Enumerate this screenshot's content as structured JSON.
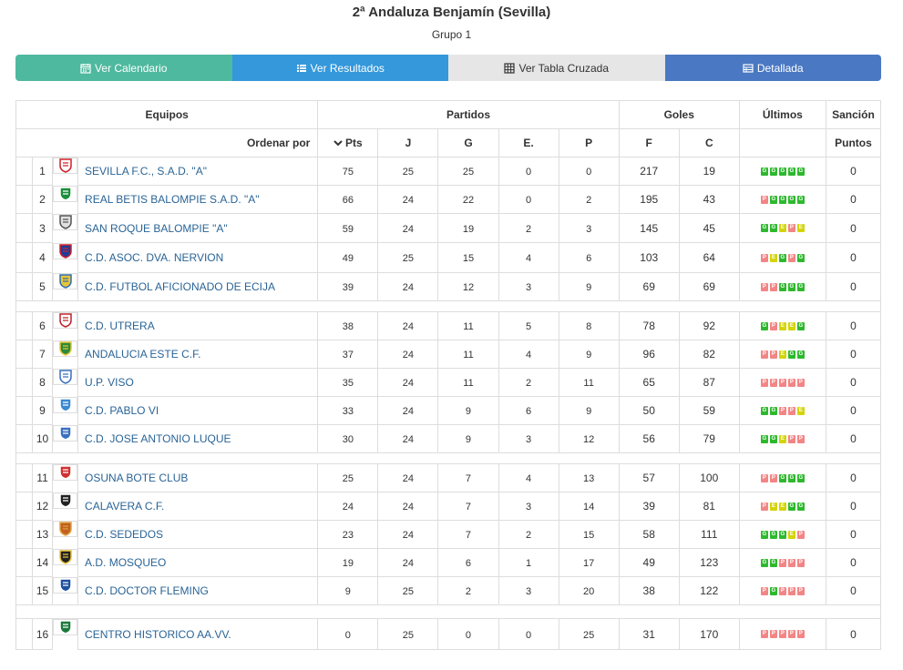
{
  "header": {
    "title": "2ª Andaluza Benjamín (Sevilla)",
    "subtitle": "Grupo 1"
  },
  "buttons": [
    {
      "label": "Ver Calendario",
      "icon": "calendar-icon",
      "color": "#4fb99f"
    },
    {
      "label": "Ver Resultados",
      "icon": "list-icon",
      "color": "#3498db"
    },
    {
      "label": "Ver Tabla Cruzada",
      "icon": "grid-icon",
      "color": "#e6e6e6"
    },
    {
      "label": "Detallada",
      "icon": "table-icon",
      "color": "#4a78c2"
    }
  ],
  "table": {
    "group_headers": {
      "equipos": "Equipos",
      "partidos": "Partidos",
      "goles": "Goles",
      "ultimos": "Últimos",
      "sancion": "Sanción"
    },
    "sub_headers": {
      "ordenar": "Ordenar por",
      "pts": "Pts",
      "j": "J",
      "g": "G",
      "e": "E.",
      "p": "P",
      "f": "F",
      "c": "C",
      "puntos": "Puntos"
    },
    "chip_colors": {
      "G": "#2eb82e",
      "E": "#d4d40a",
      "P": "#f28585"
    },
    "rows": [
      {
        "pos": "1",
        "team": "SEVILLA F.C., S.A.D. \"A\"",
        "pts": "75",
        "j": "25",
        "g": "25",
        "e": "0",
        "p": "0",
        "f": "217",
        "c": "19",
        "last": [
          "G",
          "G",
          "G",
          "G",
          "G"
        ],
        "sancion": "0"
      },
      {
        "pos": "2",
        "team": "REAL BETIS BALOMPIE S.A.D. \"A\"",
        "pts": "66",
        "j": "24",
        "g": "22",
        "e": "0",
        "p": "2",
        "f": "195",
        "c": "43",
        "last": [
          "P",
          "G",
          "G",
          "G",
          "G"
        ],
        "sancion": "0"
      },
      {
        "pos": "3",
        "team": "SAN ROQUE BALOMPIE \"A\"",
        "pts": "59",
        "j": "24",
        "g": "19",
        "e": "2",
        "p": "3",
        "f": "145",
        "c": "45",
        "last": [
          "G",
          "G",
          "E",
          "P",
          "E"
        ],
        "sancion": "0"
      },
      {
        "pos": "4",
        "team": "C.D. ASOC. DVA. NERVION",
        "pts": "49",
        "j": "25",
        "g": "15",
        "e": "4",
        "p": "6",
        "f": "103",
        "c": "64",
        "last": [
          "P",
          "E",
          "G",
          "P",
          "G"
        ],
        "sancion": "0"
      },
      {
        "pos": "5",
        "team": "C.D. FUTBOL AFICIONADO DE ECIJA",
        "pts": "39",
        "j": "24",
        "g": "12",
        "e": "3",
        "p": "9",
        "f": "69",
        "c": "69",
        "last": [
          "P",
          "P",
          "G",
          "G",
          "G"
        ],
        "sancion": "0"
      },
      {
        "pos": "6",
        "team": "C.D. UTRERA",
        "pts": "38",
        "j": "24",
        "g": "11",
        "e": "5",
        "p": "8",
        "f": "78",
        "c": "92",
        "last": [
          "G",
          "P",
          "E",
          "E",
          "G"
        ],
        "sancion": "0"
      },
      {
        "pos": "7",
        "team": "ANDALUCIA ESTE C.F.",
        "pts": "37",
        "j": "24",
        "g": "11",
        "e": "4",
        "p": "9",
        "f": "96",
        "c": "82",
        "last": [
          "P",
          "P",
          "E",
          "G",
          "G"
        ],
        "sancion": "0"
      },
      {
        "pos": "8",
        "team": "U.P. VISO",
        "pts": "35",
        "j": "24",
        "g": "11",
        "e": "2",
        "p": "11",
        "f": "65",
        "c": "87",
        "last": [
          "P",
          "P",
          "P",
          "P",
          "P"
        ],
        "sancion": "0"
      },
      {
        "pos": "9",
        "team": "C.D. PABLO VI",
        "pts": "33",
        "j": "24",
        "g": "9",
        "e": "6",
        "p": "9",
        "f": "50",
        "c": "59",
        "last": [
          "G",
          "G",
          "P",
          "P",
          "E"
        ],
        "sancion": "0"
      },
      {
        "pos": "10",
        "team": "C.D. JOSE ANTONIO LUQUE",
        "pts": "30",
        "j": "24",
        "g": "9",
        "e": "3",
        "p": "12",
        "f": "56",
        "c": "79",
        "last": [
          "G",
          "G",
          "E",
          "P",
          "P"
        ],
        "sancion": "0"
      },
      {
        "pos": "11",
        "team": "OSUNA BOTE CLUB",
        "pts": "25",
        "j": "24",
        "g": "7",
        "e": "4",
        "p": "13",
        "f": "57",
        "c": "100",
        "last": [
          "P",
          "P",
          "G",
          "G",
          "G"
        ],
        "sancion": "0"
      },
      {
        "pos": "12",
        "team": "CALAVERA C.F.",
        "pts": "24",
        "j": "24",
        "g": "7",
        "e": "3",
        "p": "14",
        "f": "39",
        "c": "81",
        "last": [
          "P",
          "E",
          "E",
          "G",
          "G"
        ],
        "sancion": "0"
      },
      {
        "pos": "13",
        "team": "C.D. SEDEDOS",
        "pts": "23",
        "j": "24",
        "g": "7",
        "e": "2",
        "p": "15",
        "f": "58",
        "c": "111",
        "last": [
          "G",
          "G",
          "G",
          "E",
          "P"
        ],
        "sancion": "0"
      },
      {
        "pos": "14",
        "team": "A.D. MOSQUEO",
        "pts": "19",
        "j": "24",
        "g": "6",
        "e": "1",
        "p": "17",
        "f": "49",
        "c": "123",
        "last": [
          "G",
          "G",
          "P",
          "P",
          "P"
        ],
        "sancion": "0"
      },
      {
        "pos": "15",
        "team": "C.D. DOCTOR FLEMING",
        "pts": "9",
        "j": "25",
        "g": "2",
        "e": "3",
        "p": "20",
        "f": "38",
        "c": "122",
        "last": [
          "P",
          "G",
          "P",
          "P",
          "P"
        ],
        "sancion": "0"
      },
      {
        "pos": "16",
        "team": "CENTRO HISTORICO AA.VV.",
        "pts": "0",
        "j": "25",
        "g": "0",
        "e": "0",
        "p": "25",
        "f": "31",
        "c": "170",
        "last": [
          "P",
          "P",
          "P",
          "P",
          "P"
        ],
        "sancion": "0"
      }
    ],
    "separators_after": [
      5,
      10,
      15
    ]
  }
}
